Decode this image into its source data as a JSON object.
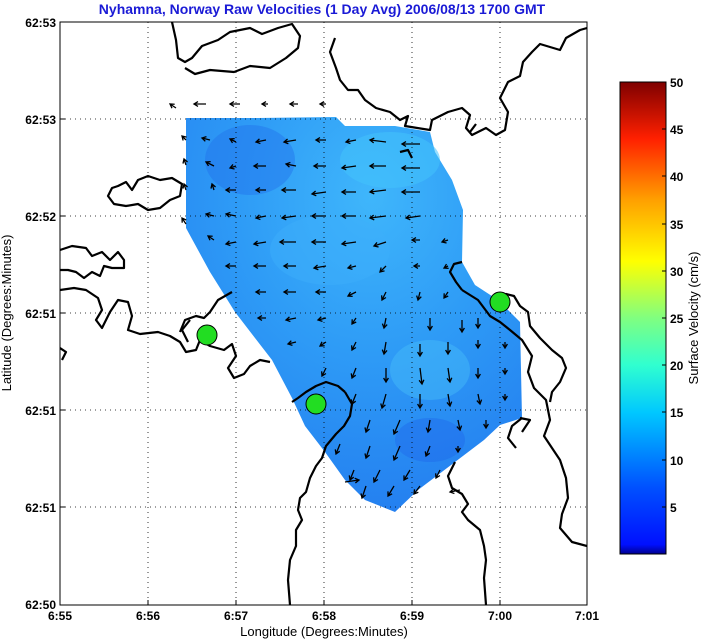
{
  "title": "Nyhamna, Norway Raw Velocities (1 Day Avg) 2006/08/13 1700 GMT",
  "map": {
    "xlabel": "Longitude (Degrees:Minutes)",
    "ylabel": "Latitude (Degrees:Minutes)",
    "xticks": [
      "6:55",
      "6:56",
      "6:57",
      "6:58",
      "6:59",
      "7:00",
      "7:01"
    ],
    "yticks": [
      "62:53",
      "62:53",
      "62:52",
      "62:51",
      "62:51",
      "62:51",
      "62:50"
    ],
    "grid": true,
    "colors": {
      "land_outline": "#000000",
      "velocity_field": "#2b8ff5",
      "velocity_field_light": "#3fb0fb",
      "arrow": "#000000",
      "station": "#22dd22",
      "title": "#1a1ad6"
    },
    "stations": [
      {
        "name": "station-west",
        "lon_min": 56.67,
        "lat_rel": 0.51
      },
      {
        "name": "station-south",
        "lon_min": 57.92,
        "lat_rel": 0.31
      },
      {
        "name": "station-east",
        "lon_min": 60.03,
        "lat_rel": 0.58
      }
    ]
  },
  "colorbar": {
    "label": "Surface Velocity (cm/s)",
    "ticks": [
      "50",
      "45",
      "40",
      "35",
      "30",
      "25",
      "20",
      "15",
      "10",
      "5"
    ],
    "range": [
      0,
      50
    ],
    "colormap": "jet"
  }
}
